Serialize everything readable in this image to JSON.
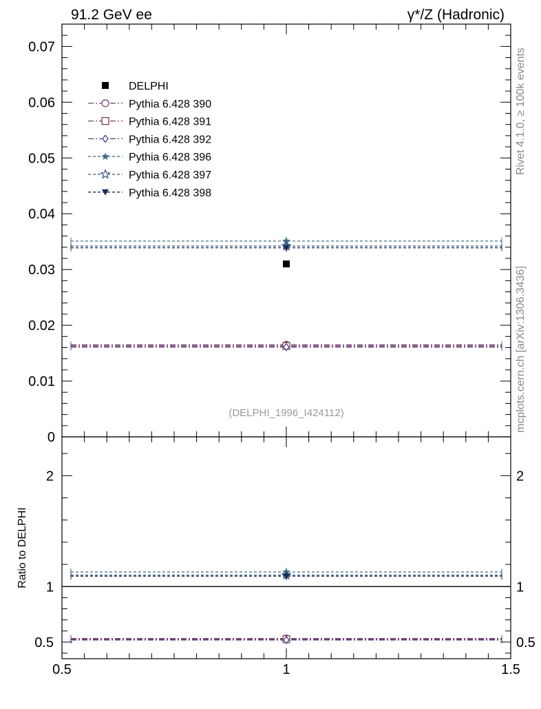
{
  "chart_data": {
    "type": "scatter",
    "header": {
      "left": "91.2 GeV ee",
      "right": "γ*/Z (Hadronic)"
    },
    "side_labels": {
      "rivet": "Rivet 4.1.0, ≥ 100k events",
      "source": "mcplots.cern.ch [arXiv:1306.3436]"
    },
    "analysis_id": "(DELPHI_1996_I424112)",
    "ratio_ylabel": "Ratio to DELPHI",
    "xlim": [
      0.5,
      1.5
    ],
    "x_ticks": [
      0.5,
      1,
      1.5
    ],
    "x_tick_labels": [
      "0.5",
      "1",
      "1.5"
    ],
    "main": {
      "ylim": [
        0,
        0.074
      ],
      "y_ticks": [
        0,
        0.01,
        0.02,
        0.03,
        0.04,
        0.05,
        0.06,
        0.07
      ],
      "y_tick_labels": [
        "0",
        "0.01",
        "0.02",
        "0.03",
        "0.04",
        "0.05",
        "0.06",
        "0.07"
      ]
    },
    "ratio": {
      "ylim": [
        0.35,
        2.35
      ],
      "y_ticks": [
        0.5,
        1,
        2
      ],
      "y_tick_labels": [
        "0.5",
        "1",
        "2"
      ]
    },
    "data": {
      "name": "DELPHI",
      "x": 1.0,
      "y": 0.031,
      "color": "#000000",
      "marker": "square"
    },
    "series": [
      {
        "name": "Pythia 6.428 390",
        "x": 1.0,
        "y": 0.0165,
        "ratio": 0.532,
        "color": "#7b4a7e",
        "marker": "circle-open",
        "dash": "8 3 2 3"
      },
      {
        "name": "Pythia 6.428 391",
        "x": 1.0,
        "y": 0.0163,
        "ratio": 0.526,
        "color": "#7a4258",
        "marker": "square-open",
        "dash": "8 3 2 3"
      },
      {
        "name": "Pythia 6.428 392",
        "x": 1.0,
        "y": 0.0161,
        "ratio": 0.519,
        "color": "#553a86",
        "marker": "diamond-open",
        "dash": "8 3 2 3"
      },
      {
        "name": "Pythia 6.428 396",
        "x": 1.0,
        "y": 0.0351,
        "ratio": 1.132,
        "color": "#3f6f86",
        "marker": "star-filled",
        "dash": "4 3"
      },
      {
        "name": "Pythia 6.428 397",
        "x": 1.0,
        "y": 0.0342,
        "ratio": 1.103,
        "color": "#33557e",
        "marker": "star-open",
        "dash": "4 3"
      },
      {
        "name": "Pythia 6.428 398",
        "x": 1.0,
        "y": 0.0339,
        "ratio": 1.094,
        "color": "#1b2a55",
        "marker": "triangle-down-filled",
        "dash": "4 3"
      }
    ]
  }
}
